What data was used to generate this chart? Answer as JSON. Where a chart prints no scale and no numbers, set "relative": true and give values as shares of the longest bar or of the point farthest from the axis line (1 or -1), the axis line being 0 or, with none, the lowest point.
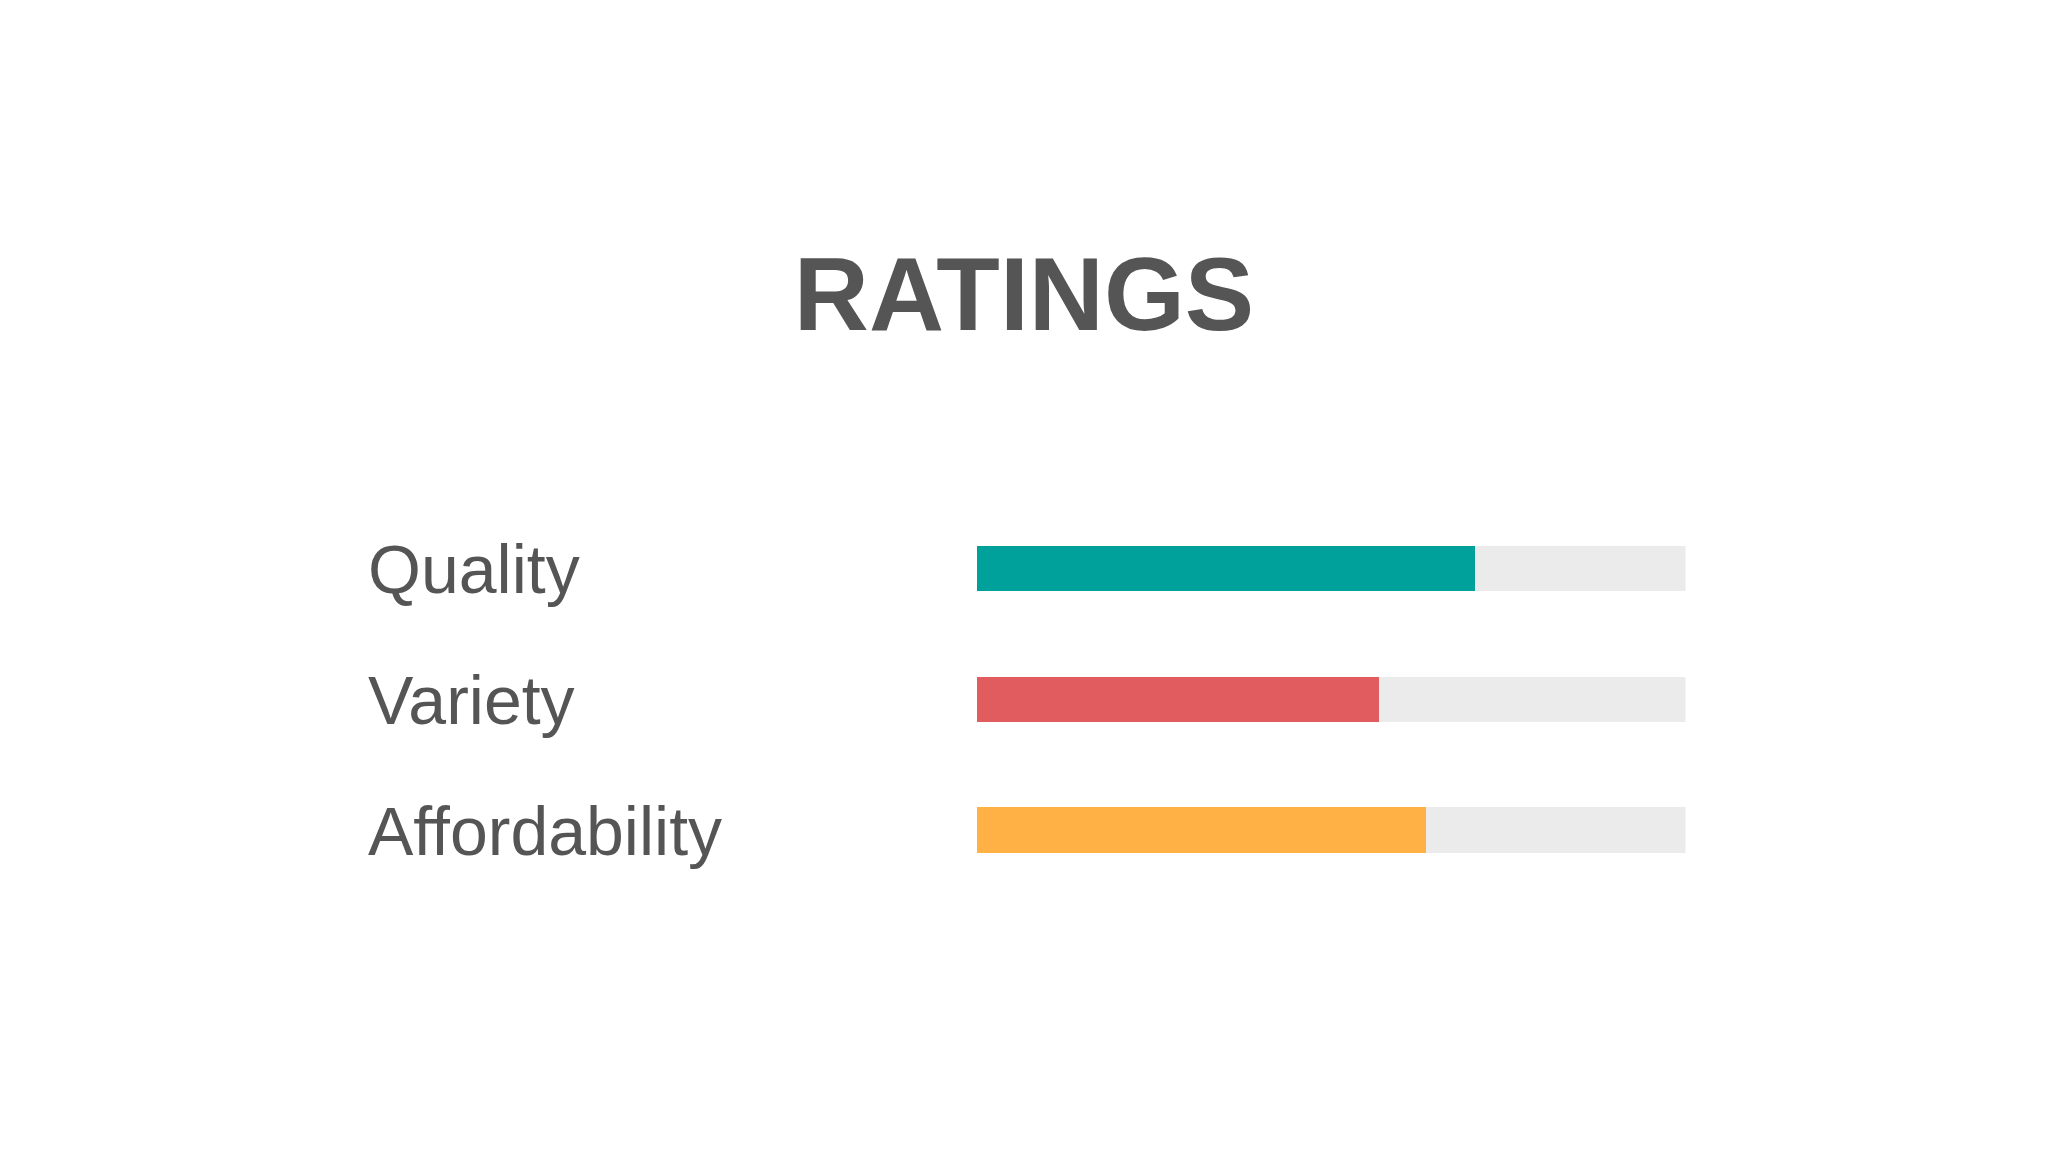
{
  "chart_data": {
    "type": "bar",
    "title": "RATINGS",
    "orientation": "horizontal",
    "stacked": true,
    "relative": true,
    "categories": [
      "Quality",
      "Variety",
      "Affordability"
    ],
    "series": [
      {
        "colors": [
          "#00a19a",
          "#e05c5e",
          "#ffb145"
        ],
        "values": [
          0.703,
          0.568,
          0.633
        ]
      },
      {
        "color": "#ebebeb",
        "values": [
          0.297,
          0.432,
          0.367
        ]
      }
    ]
  }
}
